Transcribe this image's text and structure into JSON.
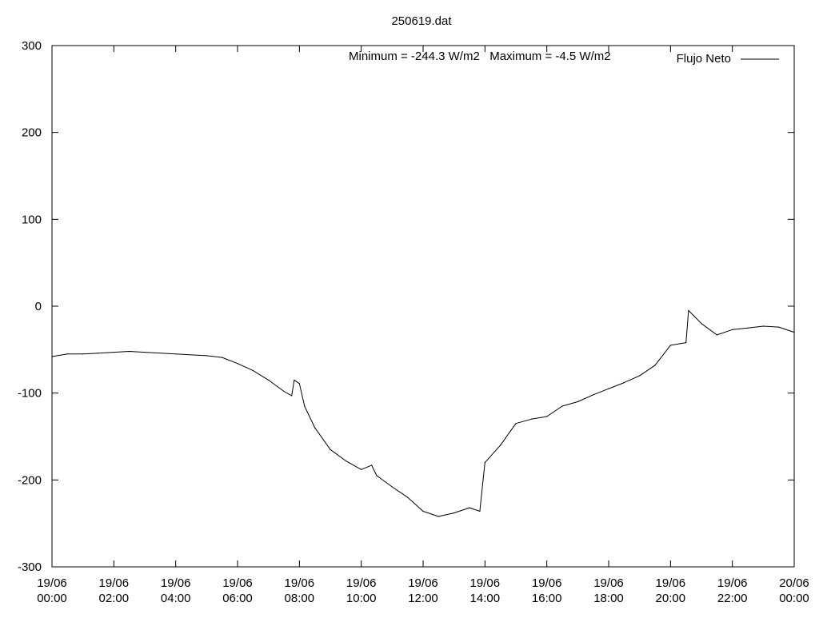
{
  "chart_data": {
    "type": "line",
    "title": "250619.dat",
    "xlabel": "",
    "ylabel": "",
    "ylim": [
      -300,
      300
    ],
    "xlim": [
      "19/06 00:00",
      "20/06 00:00"
    ],
    "grid": false,
    "legend_position": "top-right",
    "annotation": "Minimum = -244.3 W/m2   Maximum = -4.5 W/m2",
    "x_ticks": [
      {
        "date": "19/06",
        "time": "00:00"
      },
      {
        "date": "19/06",
        "time": "02:00"
      },
      {
        "date": "19/06",
        "time": "04:00"
      },
      {
        "date": "19/06",
        "time": "06:00"
      },
      {
        "date": "19/06",
        "time": "08:00"
      },
      {
        "date": "19/06",
        "time": "10:00"
      },
      {
        "date": "19/06",
        "time": "12:00"
      },
      {
        "date": "19/06",
        "time": "14:00"
      },
      {
        "date": "19/06",
        "time": "16:00"
      },
      {
        "date": "19/06",
        "time": "18:00"
      },
      {
        "date": "19/06",
        "time": "20:00"
      },
      {
        "date": "19/06",
        "time": "22:00"
      },
      {
        "date": "20/06",
        "time": "00:00"
      }
    ],
    "y_ticks": [
      "300",
      "200",
      "100",
      "0",
      "-100",
      "-200",
      "-300"
    ],
    "series": [
      {
        "name": "Flujo Neto",
        "color": "#000000",
        "x": [
          "19/06 00:00",
          "19/06 00:30",
          "19/06 01:00",
          "19/06 01:30",
          "19/06 02:00",
          "19/06 02:30",
          "19/06 03:00",
          "19/06 04:00",
          "19/06 05:00",
          "19/06 05:30",
          "19/06 06:00",
          "19/06 06:30",
          "19/06 07:00",
          "19/06 07:30",
          "19/06 07:45",
          "19/06 07:50",
          "19/06 08:00",
          "19/06 08:10",
          "19/06 08:30",
          "19/06 09:00",
          "19/06 09:30",
          "19/06 10:00",
          "19/06 10:20",
          "19/06 10:30",
          "19/06 11:00",
          "19/06 11:30",
          "19/06 12:00",
          "19/06 12:30",
          "19/06 13:00",
          "19/06 13:30",
          "19/06 13:50",
          "19/06 14:00",
          "19/06 14:30",
          "19/06 15:00",
          "19/06 15:30",
          "19/06 16:00",
          "19/06 16:30",
          "19/06 17:00",
          "19/06 17:30",
          "19/06 18:00",
          "19/06 18:30",
          "19/06 19:00",
          "19/06 19:30",
          "19/06 20:00",
          "19/06 20:30",
          "19/06 20:35",
          "19/06 21:00",
          "19/06 21:30",
          "19/06 22:00",
          "19/06 22:30",
          "19/06 23:00",
          "19/06 23:30",
          "20/06 00:00"
        ],
        "y": [
          -58,
          -55,
          -55,
          -54,
          -53,
          -52,
          -53,
          -55,
          -57,
          -59,
          -66,
          -74,
          -85,
          -98,
          -103,
          -85,
          -89,
          -115,
          -140,
          -165,
          -178,
          -188,
          -183,
          -195,
          -208,
          -220,
          -236,
          -242,
          -238,
          -232,
          -236,
          -180,
          -160,
          -135,
          -130,
          -127,
          -115,
          -110,
          -102,
          -95,
          -88,
          -80,
          -68,
          -45,
          -42,
          -5,
          -20,
          -33,
          -27,
          -25,
          -23,
          -24,
          -30
        ]
      }
    ]
  }
}
